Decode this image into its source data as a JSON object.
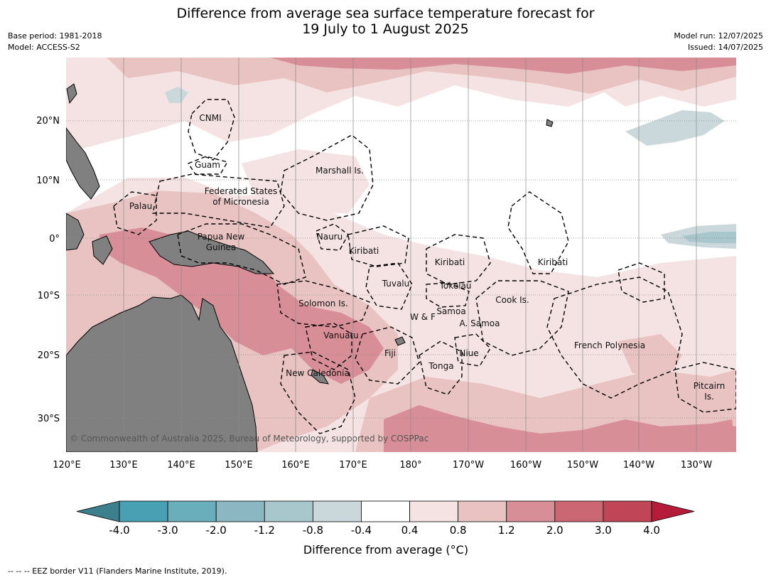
{
  "title_line1": "Difference from average sea surface temperature forecast for",
  "title_line2": "19 July to 1 August 2025",
  "base_period": "Base period: 1981-2018",
  "model": "Model: ACCESS-S2",
  "model_run": "Model run: 12/07/2025",
  "issued": "Issued: 14/07/2025",
  "lon_ticks": [
    "120°E",
    "130°E",
    "140°E",
    "150°E",
    "160°E",
    "170°E",
    "180°",
    "170°W",
    "160°W",
    "150°W",
    "140°W",
    "130°W"
  ],
  "lat_ticks": [
    "20°N",
    "10°N",
    "0°",
    "10°S",
    "20°S",
    "30°S"
  ],
  "places": {
    "cnmi": "CNMI",
    "guam": "Guam",
    "marshall": "Marshall Is.",
    "fsm1": "Federated States",
    "fsm2": "of Micronesia",
    "palau": "Palau",
    "png1": "Papua New",
    "png2": "Guinea",
    "nauru": "Nauru",
    "kiribati_w": "Kiribati",
    "kiribati_c": "Kiribati",
    "kiribati_e": "Kiribati",
    "tuvalu": "Tuvalu",
    "tokelau": "Tokelau",
    "cook": "Cook Is.",
    "solomon": "Solomon Is.",
    "samoa": "Samoa",
    "wf": "W & F",
    "asamoa": "A. Samoa",
    "vanuatu": "Vanuatu",
    "fiji": "Fiji",
    "niue": "Niue",
    "tonga": "Tonga",
    "french_polynesia": "French Polynesia",
    "new_caledonia": "New Caledonia",
    "pitcairn1": "Pitcairn",
    "pitcairn2": "Is."
  },
  "copyright": "© Commonwealth of Australia 2025, Bureau of Meteorology, supported by COSPPac",
  "colorbar": {
    "ticks": [
      "-4.0",
      "-3.0",
      "-2.0",
      "-1.2",
      "-0.8",
      "-0.4",
      "0.4",
      "0.8",
      "1.2",
      "2.0",
      "3.0",
      "4.0"
    ],
    "colors": [
      "#3c7f8d",
      "#48a0b2",
      "#6aaebc",
      "#8ab7c2",
      "#a8c7cd",
      "#cbd8db",
      "#ffffff",
      "#f4e3e2",
      "#e8c3c1",
      "#d88e96",
      "#cb6673",
      "#c04556",
      "#b41c3a"
    ],
    "label": "Difference from average (°C)"
  },
  "colors": {
    "land": "#808080",
    "grid": "#888888"
  },
  "eez_note": "--  --  -- EEZ border V11 (Flanders Marine Institute, 2019)."
}
